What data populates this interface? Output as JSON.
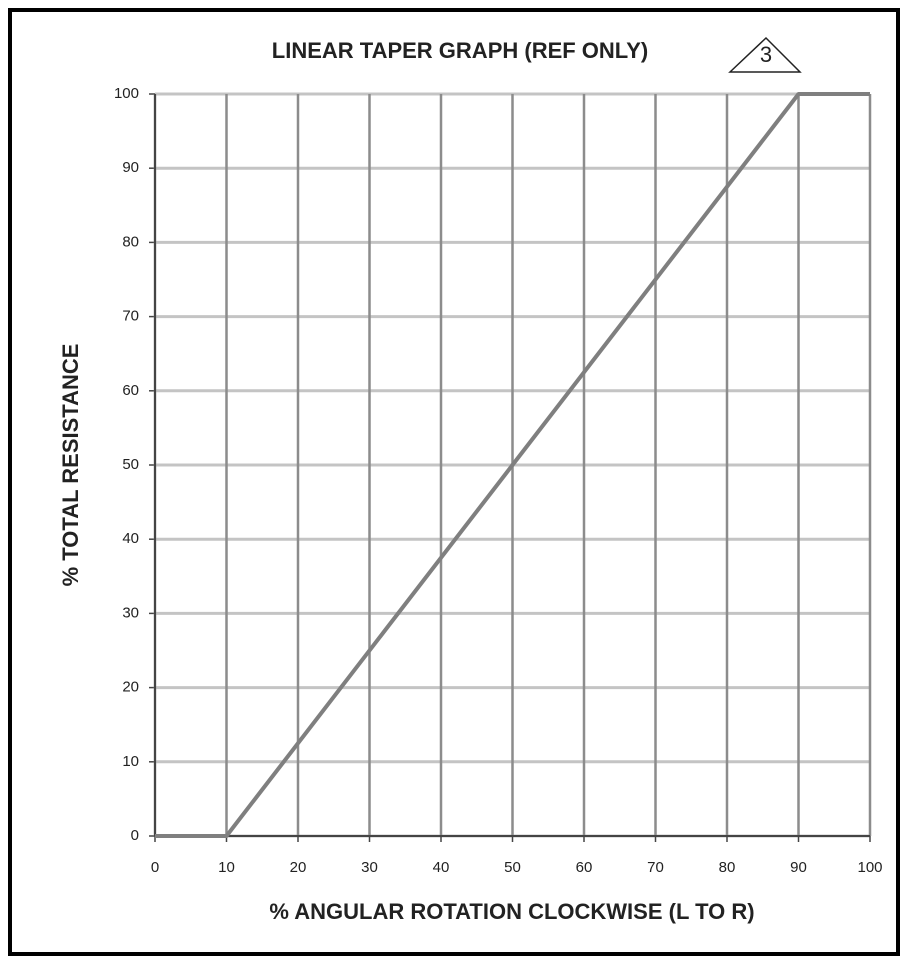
{
  "chart_data": {
    "type": "line",
    "title": "LINEAR TAPER GRAPH (REF ONLY)",
    "annotation": "3",
    "x_label": "% ANGULAR ROTATION CLOCKWISE (L TO R)",
    "y_label": "% TOTAL RESISTANCE",
    "x": [
      0,
      10,
      90,
      100
    ],
    "values": [
      0,
      0,
      100,
      100
    ],
    "color": "#7f7f7f",
    "xlim": [
      0,
      100
    ],
    "xticks": [
      0,
      10,
      20,
      30,
      40,
      50,
      60,
      70,
      80,
      90,
      100
    ],
    "ylim": [
      0,
      100
    ],
    "yticks": [
      0,
      10,
      20,
      30,
      40,
      50,
      60,
      70,
      80,
      90,
      100
    ],
    "grid": true
  }
}
